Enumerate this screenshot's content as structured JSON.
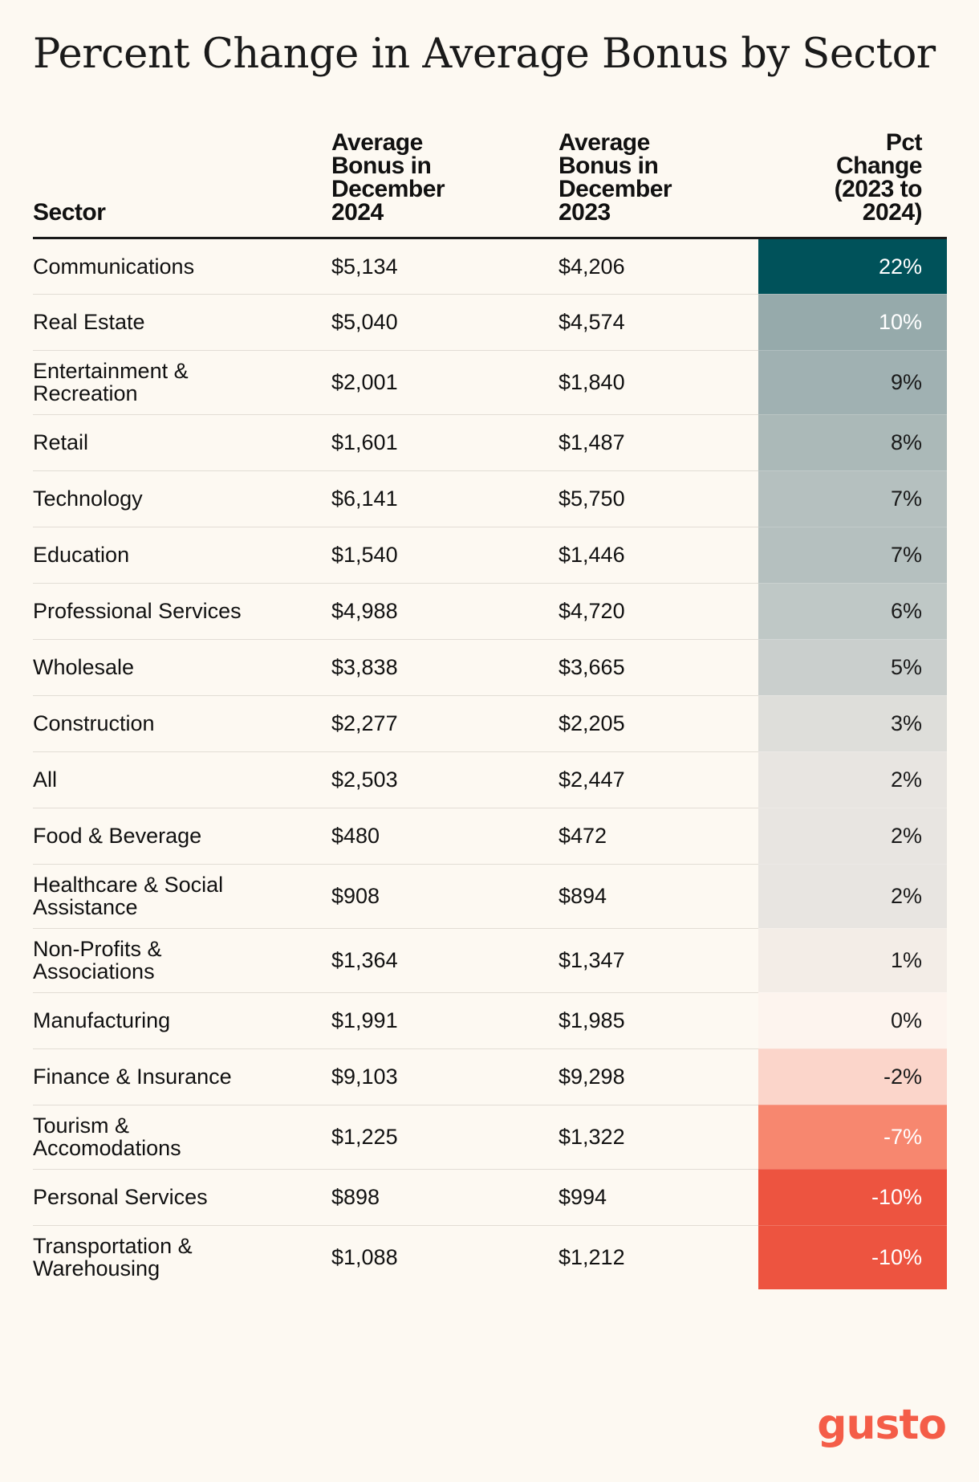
{
  "chart_data": {
    "type": "table",
    "title": "Percent Change in Average Bonus by Sector",
    "columns": [
      "Sector",
      "Average Bonus in December 2024",
      "Average Bonus in December 2023",
      "Pct Change (2023 to 2024)"
    ],
    "header_lines": {
      "sector": [
        "Sector"
      ],
      "bonus_2024": [
        "Average",
        "Bonus in",
        "December",
        "2024"
      ],
      "bonus_2023": [
        "Average",
        "Bonus in",
        "December",
        "2023"
      ],
      "pct_change": [
        "Pct",
        "Change",
        "(2023 to",
        "2024)"
      ]
    },
    "rows": [
      {
        "sector": [
          "Communications"
        ],
        "bonus_2024": "$5,134",
        "bonus_2023": "$4,206",
        "pct": 22,
        "pct_label": "22%"
      },
      {
        "sector": [
          "Real Estate"
        ],
        "bonus_2024": "$5,040",
        "bonus_2023": "$4,574",
        "pct": 10,
        "pct_label": "10%"
      },
      {
        "sector": [
          "Entertainment &",
          "Recreation"
        ],
        "bonus_2024": "$2,001",
        "bonus_2023": "$1,840",
        "pct": 9,
        "pct_label": "9%"
      },
      {
        "sector": [
          "Retail"
        ],
        "bonus_2024": "$1,601",
        "bonus_2023": "$1,487",
        "pct": 8,
        "pct_label": "8%"
      },
      {
        "sector": [
          "Technology"
        ],
        "bonus_2024": "$6,141",
        "bonus_2023": "$5,750",
        "pct": 7,
        "pct_label": "7%"
      },
      {
        "sector": [
          "Education"
        ],
        "bonus_2024": "$1,540",
        "bonus_2023": "$1,446",
        "pct": 7,
        "pct_label": "7%"
      },
      {
        "sector": [
          "Professional Services"
        ],
        "bonus_2024": "$4,988",
        "bonus_2023": "$4,720",
        "pct": 6,
        "pct_label": "6%"
      },
      {
        "sector": [
          "Wholesale"
        ],
        "bonus_2024": "$3,838",
        "bonus_2023": "$3,665",
        "pct": 5,
        "pct_label": "5%"
      },
      {
        "sector": [
          "Construction"
        ],
        "bonus_2024": "$2,277",
        "bonus_2023": "$2,205",
        "pct": 3,
        "pct_label": "3%"
      },
      {
        "sector": [
          "All"
        ],
        "bonus_2024": "$2,503",
        "bonus_2023": "$2,447",
        "pct": 2,
        "pct_label": "2%"
      },
      {
        "sector": [
          "Food & Beverage"
        ],
        "bonus_2024": "$480",
        "bonus_2023": "$472",
        "pct": 2,
        "pct_label": "2%"
      },
      {
        "sector": [
          "Healthcare & Social",
          "Assistance"
        ],
        "bonus_2024": "$908",
        "bonus_2023": "$894",
        "pct": 2,
        "pct_label": "2%"
      },
      {
        "sector": [
          "Non-Profits &",
          "Associations"
        ],
        "bonus_2024": "$1,364",
        "bonus_2023": "$1,347",
        "pct": 1,
        "pct_label": "1%"
      },
      {
        "sector": [
          "Manufacturing"
        ],
        "bonus_2024": "$1,991",
        "bonus_2023": "$1,985",
        "pct": 0,
        "pct_label": "0%"
      },
      {
        "sector": [
          "Finance & Insurance"
        ],
        "bonus_2024": "$9,103",
        "bonus_2023": "$9,298",
        "pct": -2,
        "pct_label": "-2%"
      },
      {
        "sector": [
          "Tourism &",
          "Accomodations"
        ],
        "bonus_2024": "$1,225",
        "bonus_2023": "$1,322",
        "pct": -7,
        "pct_label": "-7%"
      },
      {
        "sector": [
          "Personal Services"
        ],
        "bonus_2024": "$898",
        "bonus_2023": "$994",
        "pct": -10,
        "pct_label": "-10%"
      },
      {
        "sector": [
          "Transportation &",
          "Warehousing"
        ],
        "bonus_2024": "$1,088",
        "bonus_2023": "$1,212",
        "pct": -10,
        "pct_label": "-10%"
      }
    ],
    "color_scale": {
      "positive_max": "#00525a",
      "positive_mid": "#96aaab",
      "neutral": "#fdf4ee",
      "negative_mid": "#f7876f",
      "negative_max": "#ed5440"
    }
  },
  "brand": {
    "logo_text": "gusto",
    "logo_color": "#f45d48"
  }
}
